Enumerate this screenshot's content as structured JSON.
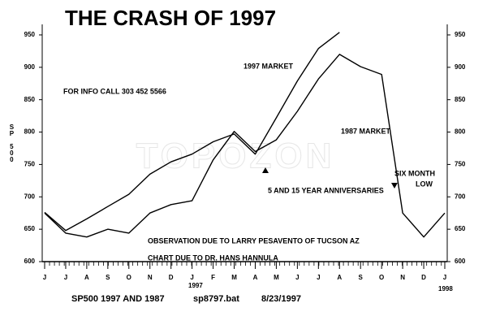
{
  "chart_data": {
    "type": "line",
    "title": "THE CRASH OF 1997",
    "y_label": "SP 500",
    "categories": [
      "J",
      "J",
      "A",
      "S",
      "O",
      "N",
      "D",
      "J",
      "F",
      "M",
      "A",
      "M",
      "J",
      "J",
      "A",
      "S",
      "O",
      "N",
      "D",
      "J"
    ],
    "series": [
      {
        "name": "1997 MARKET",
        "color": "#000000",
        "values": [
          676,
          648,
          666,
          685,
          704,
          735,
          754,
          766,
          785,
          797,
          766,
          822,
          879,
          929,
          954,
          null,
          null,
          null,
          null,
          null
        ]
      },
      {
        "name": "1987 MARKET",
        "color": "#000000",
        "axis": "y2",
        "values": [
          675,
          644,
          638,
          650,
          644,
          675,
          688,
          694,
          757,
          801,
          770,
          788,
          832,
          882,
          920,
          901,
          889,
          675,
          638,
          675
        ]
      }
    ],
    "ylim": [
      600,
      960
    ],
    "yticks": [
      600,
      650,
      700,
      750,
      800,
      850,
      900,
      950
    ],
    "y2lim": [
      600,
      960
    ],
    "y2ticks": [
      600,
      650,
      700,
      750,
      800,
      850,
      900,
      950
    ],
    "annotations": [
      "FOR INFO CALL 303 452 5566",
      "5 AND 15 YEAR ANNIVERSARIES",
      "SIX MONTH",
      "LOW",
      "OBSERVATION DUE TO LARRY PESAVENTO OF TUCSON AZ",
      "CHART DUE TO DR. HANS HANNULA",
      "1997",
      "1998",
      "TOPOZON"
    ],
    "footer": [
      "SP500  1997 AND 1987",
      "sp8797.bat",
      "8/23/1997"
    ]
  }
}
